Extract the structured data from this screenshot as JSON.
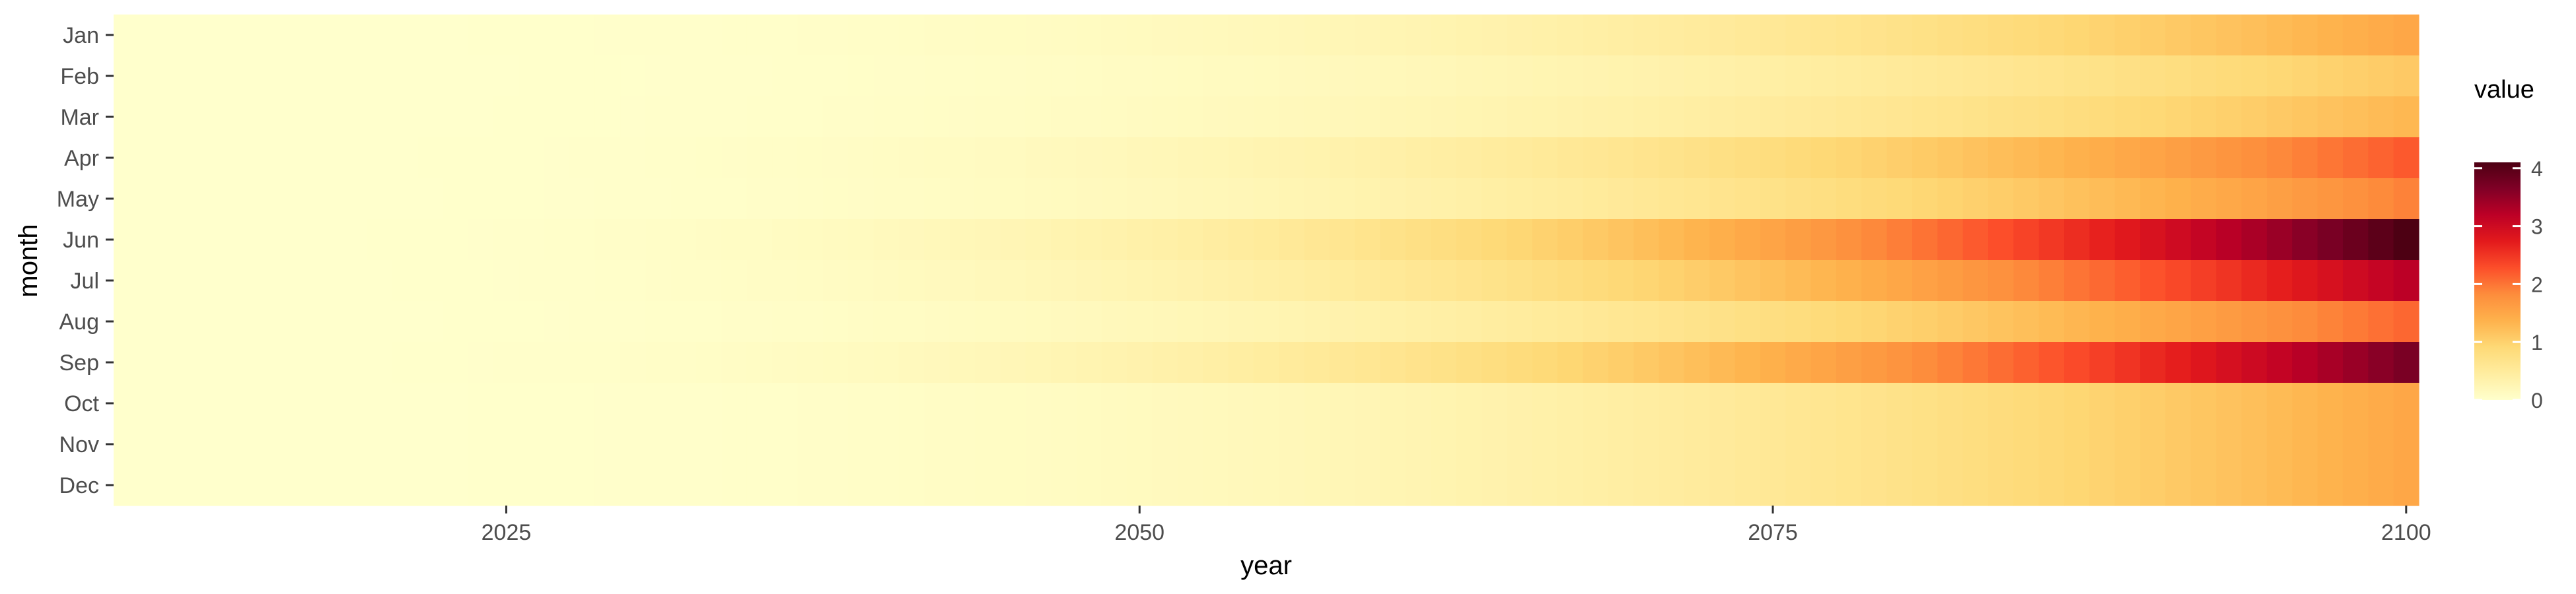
{
  "chart_data": {
    "type": "heatmap",
    "title": "",
    "xlabel": "year",
    "ylabel": "month",
    "x_range": [
      2010,
      2100
    ],
    "x_ticks": [
      2025,
      2050,
      2075,
      2100
    ],
    "months": [
      "Jan",
      "Feb",
      "Mar",
      "Apr",
      "May",
      "Jun",
      "Jul",
      "Aug",
      "Sep",
      "Oct",
      "Nov",
      "Dec"
    ],
    "month_end_values": [
      1.5,
      1.1,
      1.3,
      2.2,
      1.9,
      4.1,
      3.2,
      2.1,
      3.7,
      1.5,
      1.5,
      1.5
    ],
    "growth_exponent": 3,
    "legend": {
      "title": "value",
      "ticks": [
        0,
        1,
        2,
        3,
        4
      ],
      "range": [
        0,
        4.1
      ],
      "placement": "right"
    },
    "colors": {
      "scale": [
        "#ffffcc",
        "#ffeda0",
        "#fed976",
        "#feb24c",
        "#fd8d3c",
        "#fc4e2a",
        "#e31a1c",
        "#bd0026",
        "#800026",
        "#4d0013"
      ]
    }
  }
}
